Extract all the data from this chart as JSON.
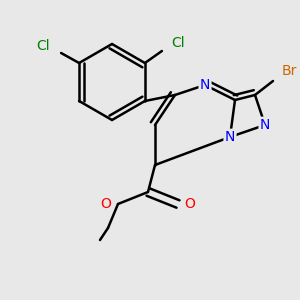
{
  "background_color": "#e8e8e8",
  "bond_color": "#000000",
  "bond_width": 1.8,
  "figsize": [
    3.0,
    3.0
  ],
  "dpi": 100,
  "colors": {
    "N": "#0000ff",
    "Br": "#cc6600",
    "Cl": "#008000",
    "O": "#ff0000",
    "C": "#000000"
  }
}
